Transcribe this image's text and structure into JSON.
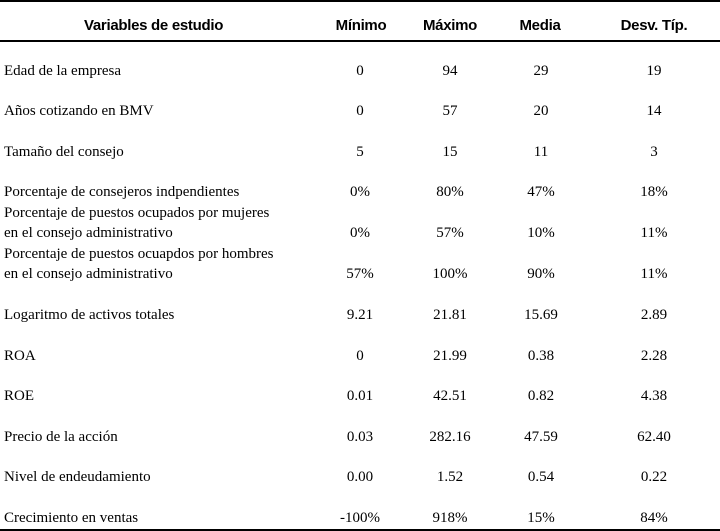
{
  "header": {
    "variable": "Variables de estudio",
    "min": "Mínimo",
    "max": "Máximo",
    "mean": "Media",
    "sd": "Desv. Típ."
  },
  "rows": [
    {
      "label": [
        "Edad de la empresa"
      ],
      "min": "0",
      "max": "94",
      "mean": "29",
      "sd": "19"
    },
    {
      "label": [
        "Años cotizando en BMV"
      ],
      "min": "0",
      "max": "57",
      "mean": "20",
      "sd": "14"
    },
    {
      "label": [
        "Tamaño del consejo"
      ],
      "min": "5",
      "max": "15",
      "mean": "11",
      "sd": "3"
    },
    {
      "label": [
        "Porcentaje de consejeros indpendientes"
      ],
      "min": "0%",
      "max": "80%",
      "mean": "47%",
      "sd": "18%"
    },
    {
      "label": [
        "Porcentaje de puestos ocupados por mujeres",
        "en el consejo administrativo"
      ],
      "min": "0%",
      "max": "57%",
      "mean": "10%",
      "sd": "11%"
    },
    {
      "label": [
        "Porcentaje de puestos ocuapdos por hombres",
        "en el consejo administrativo"
      ],
      "min": "57%",
      "max": "100%",
      "mean": "90%",
      "sd": "11%"
    },
    {
      "label": [
        "Logaritmo de activos totales"
      ],
      "min": "9.21",
      "max": "21.81",
      "mean": "15.69",
      "sd": "2.89"
    },
    {
      "label": [
        "ROA"
      ],
      "min": "0",
      "max": "21.99",
      "mean": "0.38",
      "sd": "2.28"
    },
    {
      "label": [
        "ROE"
      ],
      "min": "0.01",
      "max": "42.51",
      "mean": "0.82",
      "sd": "4.38"
    },
    {
      "label": [
        "Precio de la acción"
      ],
      "min": "0.03",
      "max": "282.16",
      "mean": "47.59",
      "sd": "62.40"
    },
    {
      "label": [
        "Nivel de endeudamiento"
      ],
      "min": "0.00",
      "max": "1.52",
      "mean": "0.54",
      "sd": "0.22"
    },
    {
      "label": [
        "Crecimiento en ventas"
      ],
      "min": "-100%",
      "max": "918%",
      "mean": "15%",
      "sd": "84%"
    }
  ]
}
